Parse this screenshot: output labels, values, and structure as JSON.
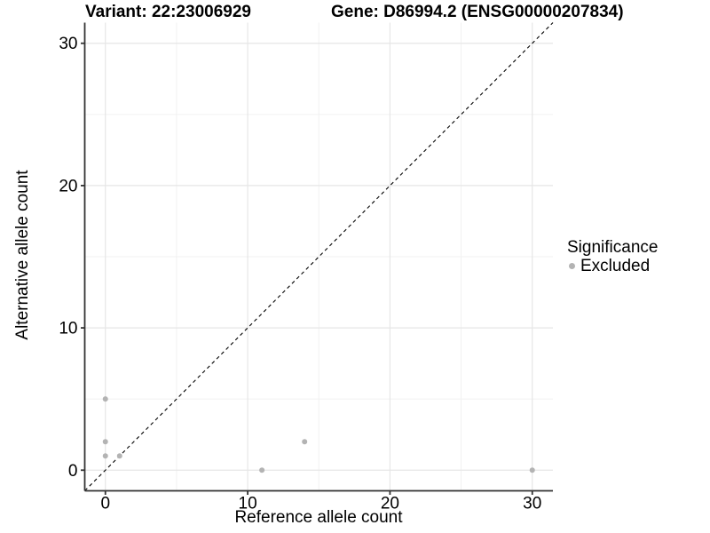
{
  "header": {
    "variant_title": "Variant: 22:23006929",
    "gene_title": "Gene: D86994.2 (ENSG00000207834)"
  },
  "chart_data": {
    "type": "scatter",
    "xlabel": "Reference allele count",
    "ylabel": "Alternative allele count",
    "xlim": [
      -1.45,
      31.45
    ],
    "ylim": [
      -1.45,
      31.45
    ],
    "x_ticks": [
      0,
      10,
      20,
      30
    ],
    "y_ticks": [
      0,
      10,
      20,
      30
    ],
    "x_minor_ticks": [
      5,
      15,
      25
    ],
    "y_minor_ticks": [
      5,
      15,
      25
    ],
    "grid": "on",
    "reference_line": {
      "type": "identity",
      "equation": "y = x",
      "style": "dashed",
      "color": "#000000"
    },
    "series": [
      {
        "name": "Excluded",
        "color": "#b3b3b3",
        "points": [
          [
            0,
            1
          ],
          [
            0,
            2
          ],
          [
            0,
            5
          ],
          [
            1,
            1
          ],
          [
            11,
            0
          ],
          [
            14,
            2
          ],
          [
            30,
            0
          ]
        ]
      }
    ],
    "legend": {
      "title": "Significance",
      "position": "right",
      "items": [
        {
          "label": "Excluded",
          "color": "#b3b3b3"
        }
      ]
    }
  }
}
